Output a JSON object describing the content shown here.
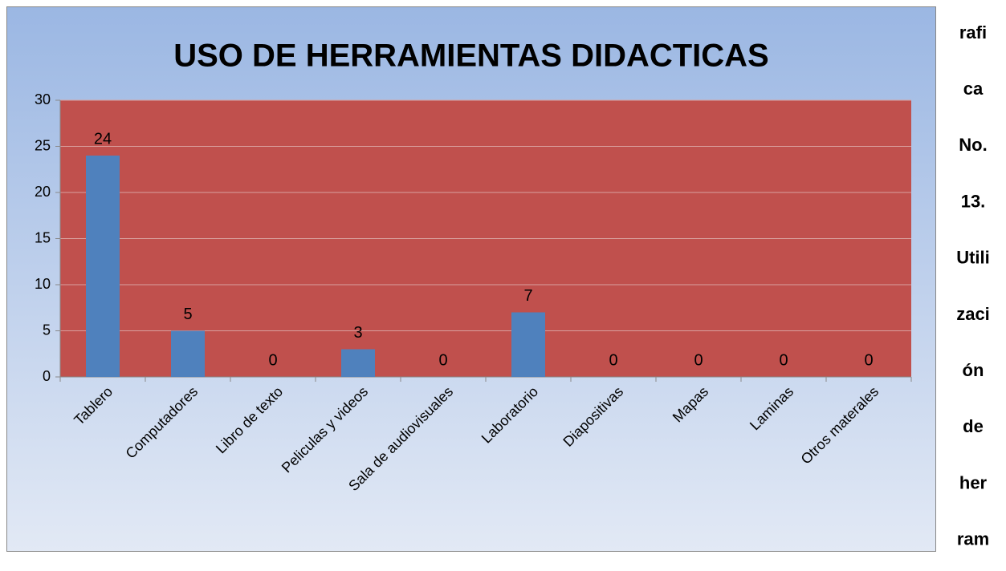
{
  "chart_data": {
    "type": "bar",
    "title": "USO DE HERRAMIENTAS DIDACTICAS",
    "categories": [
      "Tablero",
      "Computadores",
      "Libro de texto",
      "Peliculas y videos",
      "Sala de audiovisuales",
      "Laboratorio",
      "Diapositivas",
      "Mapas",
      "Laminas",
      "Otros materales"
    ],
    "values": [
      24,
      5,
      0,
      3,
      0,
      7,
      0,
      0,
      0,
      0
    ],
    "color": "#4f81bd",
    "plot_background": "#c0504d",
    "ylim": [
      0,
      30
    ],
    "yticks": [
      0,
      5,
      10,
      15,
      20,
      25,
      30
    ],
    "grid": true
  },
  "side_text": [
    "rafi",
    "ca",
    "No.",
    "13.",
    "Utili",
    "zaci",
    "ón",
    "de",
    "her",
    "ram"
  ]
}
